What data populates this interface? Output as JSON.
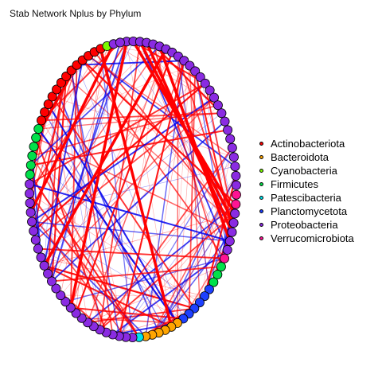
{
  "title": "Stab Network Nplus by Phylum",
  "legend": [
    {
      "label": "Actinobacteriota",
      "color": "#ff0000"
    },
    {
      "label": "Bacteroidota",
      "color": "#ffa500"
    },
    {
      "label": "Cyanobacteria",
      "color": "#7cfc00"
    },
    {
      "label": "Firmicutes",
      "color": "#00e04a"
    },
    {
      "label": "Patescibacteria",
      "color": "#00e5ee"
    },
    {
      "label": "Planctomycetota",
      "color": "#1e40ff"
    },
    {
      "label": "Proteobacteria",
      "color": "#8a2be2"
    },
    {
      "label": "Verrucomicrobiota",
      "color": "#ff1493"
    }
  ],
  "node_order_clockwise_from_top": [
    {
      "phylum": "Proteobacteria",
      "count": 26
    },
    {
      "phylum": "Verrucomicrobiota",
      "count": 2
    },
    {
      "phylum": "Proteobacteria",
      "count": 5
    },
    {
      "phylum": "Verrucomicrobiota",
      "count": 1
    },
    {
      "phylum": "Firmicutes",
      "count": 3
    },
    {
      "phylum": "Planctomycetota",
      "count": 6
    },
    {
      "phylum": "Bacteroidota",
      "count": 6
    },
    {
      "phylum": "Patescibacteria",
      "count": 1
    },
    {
      "phylum": "Proteobacteria",
      "count": 26
    },
    {
      "phylum": "Firmicutes",
      "count": 6
    },
    {
      "phylum": "Actinobacteriota",
      "count": 13
    },
    {
      "phylum": "Cyanobacteria",
      "count": 1
    },
    {
      "phylum": "Proteobacteria",
      "count": 2
    }
  ],
  "edge_colors": {
    "positive": "#ff0000",
    "negative": "#0000ee"
  }
}
